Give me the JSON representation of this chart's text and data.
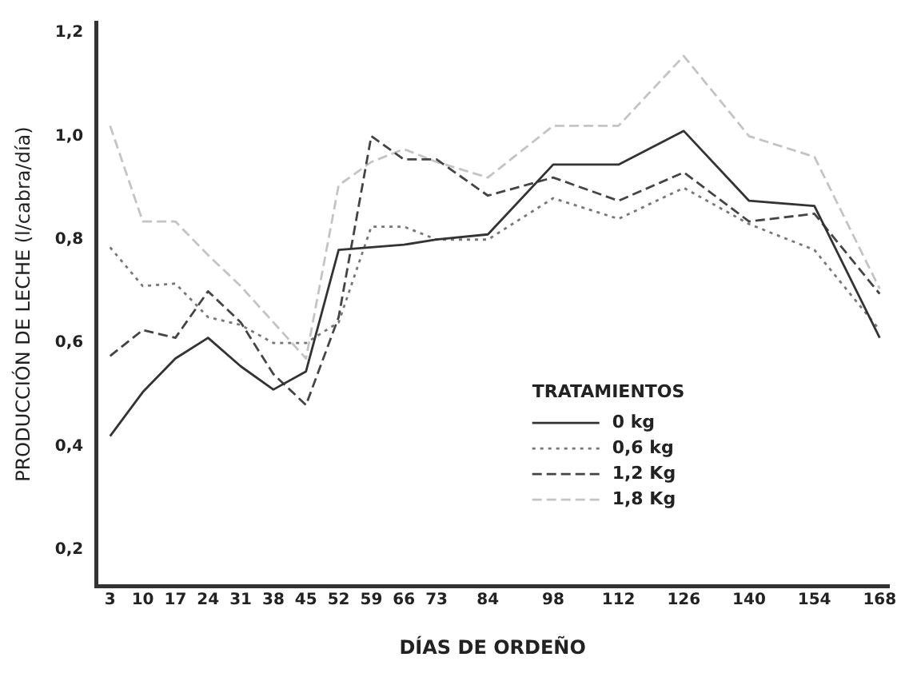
{
  "chart_data": {
    "type": "line",
    "xlabel": "DÍAS DE ORDEÑO",
    "ylabel": "PRODUCCIÓN DE LECHE (l/cabra/día)",
    "legend_title": "TRATAMIENTOS",
    "legend": "bottom right",
    "grid": false,
    "marker": "none",
    "x": [
      3,
      10,
      17,
      24,
      31,
      38,
      45,
      52,
      59,
      66,
      73,
      84,
      98,
      112,
      126,
      140,
      154,
      168
    ],
    "xlim": [
      0,
      170
    ],
    "xticks": [
      3,
      10,
      17,
      24,
      31,
      38,
      45,
      52,
      59,
      66,
      73,
      84,
      98,
      112,
      126,
      140,
      154,
      168
    ],
    "ylim": [
      0.13,
      1.22
    ],
    "yticks": [
      {
        "value": 0.2,
        "label": "0,2"
      },
      {
        "value": 0.4,
        "label": "0,4"
      },
      {
        "value": 0.6,
        "label": "0,6"
      },
      {
        "value": 0.8,
        "label": "0,8"
      },
      {
        "value": 1.0,
        "label": "1,0"
      },
      {
        "value": 1.2,
        "label": "1,2"
      }
    ],
    "series": [
      {
        "name": "0 kg",
        "color": "#333333",
        "line_style": "solid",
        "values": [
          0.42,
          0.505,
          0.57,
          0.61,
          0.555,
          0.51,
          0.545,
          0.78,
          0.785,
          0.79,
          0.8,
          0.81,
          0.945,
          0.945,
          1.01,
          0.875,
          0.865,
          0.61
        ]
      },
      {
        "name": "0,6 kg",
        "color": "#777777",
        "line_style": "dotted",
        "values": [
          0.785,
          0.71,
          0.715,
          0.65,
          0.635,
          0.6,
          0.6,
          0.64,
          0.825,
          0.825,
          0.8,
          0.8,
          0.88,
          0.84,
          0.9,
          0.83,
          0.78,
          0.625
        ]
      },
      {
        "name": "1,2 Kg",
        "color": "#444444",
        "line_style": "dashed",
        "values": [
          0.575,
          0.625,
          0.61,
          0.7,
          0.64,
          0.54,
          0.48,
          0.65,
          1.0,
          0.955,
          0.955,
          0.885,
          0.92,
          0.875,
          0.93,
          0.835,
          0.85,
          0.695
        ]
      },
      {
        "name": "1,8 Kg",
        "color": "#c4c4c4",
        "line_style": "dashed",
        "values": [
          1.02,
          0.835,
          0.835,
          0.77,
          0.71,
          0.64,
          0.57,
          0.905,
          0.95,
          0.975,
          0.95,
          0.92,
          1.02,
          1.02,
          1.155,
          1.0,
          0.96,
          0.705
        ]
      }
    ]
  }
}
